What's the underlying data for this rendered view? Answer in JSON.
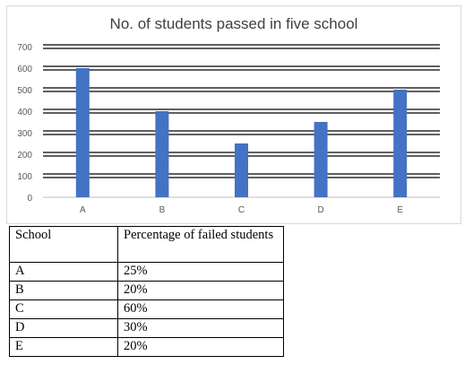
{
  "chart_data": {
    "type": "bar",
    "title": "No. of students passed in five school",
    "xlabel": "",
    "ylabel": "",
    "categories": [
      "A",
      "B",
      "C",
      "D",
      "E"
    ],
    "values": [
      600,
      400,
      250,
      350,
      500
    ],
    "ylim": [
      0,
      700
    ],
    "yticks": [
      "0",
      "100",
      "200",
      "300",
      "400",
      "500",
      "600",
      "700"
    ],
    "grid": true,
    "legend": "none",
    "bar_color": "#4472C4",
    "grid_color": "#000000"
  },
  "table": {
    "headers": [
      "School",
      "Percentage of failed students"
    ],
    "rows": [
      [
        "A",
        "25%"
      ],
      [
        "B",
        "20%"
      ],
      [
        "C",
        "60%"
      ],
      [
        "D",
        "30%"
      ],
      [
        "E",
        "20%"
      ]
    ]
  }
}
